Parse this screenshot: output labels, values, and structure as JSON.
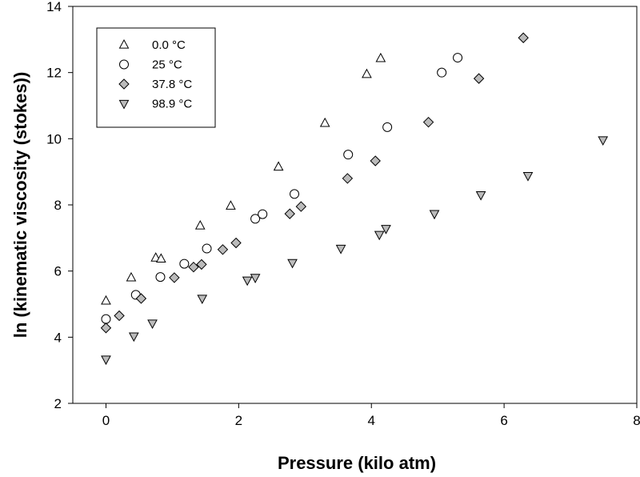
{
  "chart_data": {
    "type": "scatter",
    "title": "",
    "xlabel": "Pressure (kilo atm)",
    "ylabel": "ln (kinematic viscosity (stokes))",
    "xlim": [
      -0.5,
      8
    ],
    "ylim": [
      2,
      14
    ],
    "xticks": [
      "0",
      "2",
      "4",
      "6",
      "8"
    ],
    "yticks": [
      "2",
      "4",
      "6",
      "8",
      "10",
      "12",
      "14"
    ],
    "grid": false,
    "legend_position": "top-left",
    "series": [
      {
        "name": "0.0 °C",
        "marker": "triangle-up",
        "fill": "#ffffff",
        "points": [
          [
            0.0,
            5.1
          ],
          [
            0.38,
            5.8
          ],
          [
            0.75,
            6.4
          ],
          [
            0.83,
            6.37
          ],
          [
            1.42,
            7.37
          ],
          [
            1.88,
            7.97
          ],
          [
            2.6,
            9.15
          ],
          [
            3.3,
            10.47
          ],
          [
            3.93,
            11.95
          ],
          [
            4.14,
            12.43
          ]
        ]
      },
      {
        "name": "25 °C",
        "marker": "circle",
        "fill": "#ffffff",
        "points": [
          [
            0.0,
            4.55
          ],
          [
            0.45,
            5.28
          ],
          [
            0.82,
            5.82
          ],
          [
            1.18,
            6.22
          ],
          [
            1.52,
            6.68
          ],
          [
            2.25,
            7.58
          ],
          [
            2.36,
            7.72
          ],
          [
            2.84,
            8.33
          ],
          [
            3.65,
            9.52
          ],
          [
            4.24,
            10.35
          ],
          [
            5.06,
            12.0
          ],
          [
            5.3,
            12.45
          ]
        ]
      },
      {
        "name": "37.8 °C",
        "marker": "diamond",
        "fill": "#bbbbbb",
        "points": [
          [
            0.0,
            4.28
          ],
          [
            0.2,
            4.65
          ],
          [
            0.53,
            5.17
          ],
          [
            1.03,
            5.8
          ],
          [
            1.32,
            6.12
          ],
          [
            1.44,
            6.2
          ],
          [
            1.76,
            6.65
          ],
          [
            1.96,
            6.85
          ],
          [
            2.77,
            7.73
          ],
          [
            2.94,
            7.95
          ],
          [
            3.64,
            8.8
          ],
          [
            4.06,
            9.33
          ],
          [
            4.86,
            10.5
          ],
          [
            5.62,
            11.82
          ],
          [
            6.29,
            13.05
          ]
        ]
      },
      {
        "name": "98.9 °C",
        "marker": "triangle-down",
        "fill": "#bbbbbb",
        "points": [
          [
            0.0,
            3.33
          ],
          [
            0.42,
            4.03
          ],
          [
            0.7,
            4.42
          ],
          [
            1.45,
            5.17
          ],
          [
            2.13,
            5.72
          ],
          [
            2.25,
            5.8
          ],
          [
            2.81,
            6.25
          ],
          [
            3.54,
            6.68
          ],
          [
            4.12,
            7.1
          ],
          [
            4.22,
            7.28
          ],
          [
            4.95,
            7.73
          ],
          [
            5.65,
            8.3
          ],
          [
            6.36,
            8.88
          ],
          [
            7.49,
            9.96
          ]
        ]
      }
    ]
  }
}
